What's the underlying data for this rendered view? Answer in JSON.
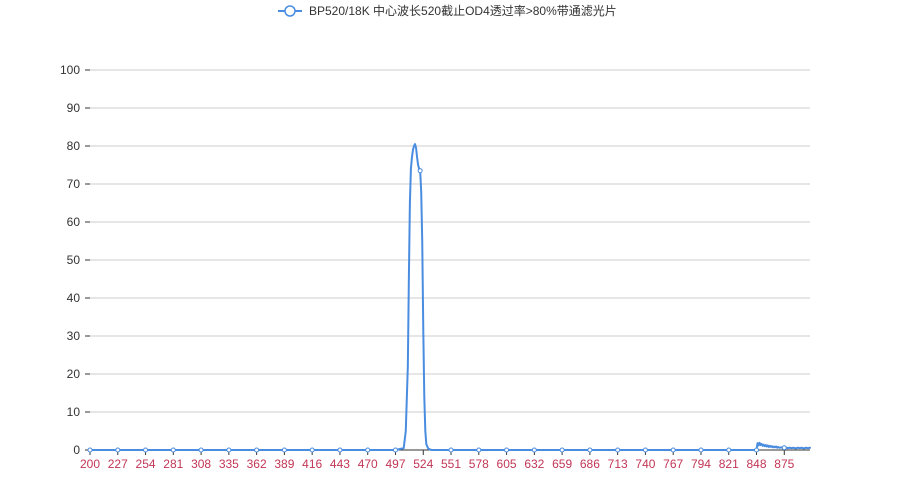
{
  "colors": {
    "series": "#4a8de0",
    "x_tick_label": "#c23656",
    "y_tick_label": "#333333",
    "grid": "#cccccc",
    "axis": "#333333",
    "legend_text": "#333333"
  },
  "chart_data": {
    "type": "line",
    "legend_position": "top-center",
    "grid": true,
    "x_axis": {
      "ticks": [
        200,
        227,
        254,
        281,
        308,
        335,
        362,
        389,
        416,
        443,
        470,
        497,
        524,
        551,
        578,
        605,
        632,
        659,
        686,
        713,
        740,
        767,
        794,
        821,
        848,
        875
      ],
      "range": [
        200,
        900
      ]
    },
    "y_axis": {
      "ticks": [
        0,
        10,
        20,
        30,
        40,
        50,
        60,
        70,
        80,
        90,
        100
      ],
      "range": [
        0,
        100
      ]
    },
    "series": [
      {
        "name": "BP520/18K 中心波长520截止OD4透过率>80%带通滤光片",
        "symbol": "empty-circle",
        "smooth": true,
        "points": [
          [
            200,
            0
          ],
          [
            227,
            0
          ],
          [
            254,
            0
          ],
          [
            281,
            0
          ],
          [
            308,
            0
          ],
          [
            335,
            0
          ],
          [
            362,
            0
          ],
          [
            389,
            0
          ],
          [
            416,
            0
          ],
          [
            443,
            0
          ],
          [
            470,
            0
          ],
          [
            497,
            0
          ],
          [
            505,
            0.5
          ],
          [
            507,
            5
          ],
          [
            509,
            22
          ],
          [
            510,
            45
          ],
          [
            511,
            65
          ],
          [
            512,
            74
          ],
          [
            513,
            77
          ],
          [
            514,
            79
          ],
          [
            515,
            80
          ],
          [
            516,
            80.5
          ],
          [
            517,
            79.5
          ],
          [
            518,
            77
          ],
          [
            519,
            75
          ],
          [
            520,
            74
          ],
          [
            521,
            73.5
          ],
          [
            522,
            68
          ],
          [
            523,
            55
          ],
          [
            524,
            32
          ],
          [
            525,
            14
          ],
          [
            526,
            5
          ],
          [
            527,
            1.5
          ],
          [
            529,
            0.3
          ],
          [
            532,
            0
          ],
          [
            551,
            0
          ],
          [
            578,
            0
          ],
          [
            605,
            0
          ],
          [
            632,
            0
          ],
          [
            659,
            0
          ],
          [
            686,
            0
          ],
          [
            713,
            0
          ],
          [
            740,
            0
          ],
          [
            767,
            0
          ],
          [
            794,
            0
          ],
          [
            821,
            0
          ],
          [
            848,
            0
          ],
          [
            849,
            1.8
          ],
          [
            850,
            1.2
          ],
          [
            851,
            1.9
          ],
          [
            852,
            1.3
          ],
          [
            853,
            1.6
          ],
          [
            854,
            1.1
          ],
          [
            855,
            1.4
          ],
          [
            856,
            1.0
          ],
          [
            857,
            1.3
          ],
          [
            858,
            0.9
          ],
          [
            859,
            1.2
          ],
          [
            860,
            0.8
          ],
          [
            861,
            1.1
          ],
          [
            862,
            0.8
          ],
          [
            863,
            1.0
          ],
          [
            864,
            0.7
          ],
          [
            865,
            0.9
          ],
          [
            866,
            0.7
          ],
          [
            867,
            0.9
          ],
          [
            868,
            0.6
          ],
          [
            869,
            0.8
          ],
          [
            870,
            0.6
          ],
          [
            872,
            0.7
          ],
          [
            874,
            0.5
          ],
          [
            876,
            0.7
          ],
          [
            878,
            0.5
          ],
          [
            880,
            0.6
          ],
          [
            882,
            0.5
          ],
          [
            884,
            0.6
          ],
          [
            886,
            0.4
          ],
          [
            888,
            0.6
          ],
          [
            890,
            0.5
          ],
          [
            892,
            0.6
          ],
          [
            894,
            0.4
          ],
          [
            896,
            0.6
          ],
          [
            898,
            0.5
          ],
          [
            900,
            0.6
          ]
        ],
        "marked_x": [
          200,
          227,
          254,
          281,
          308,
          335,
          362,
          389,
          416,
          443,
          470,
          497,
          521,
          551,
          578,
          605,
          632,
          659,
          686,
          713,
          740,
          767,
          794,
          821,
          848,
          875
        ]
      }
    ]
  }
}
